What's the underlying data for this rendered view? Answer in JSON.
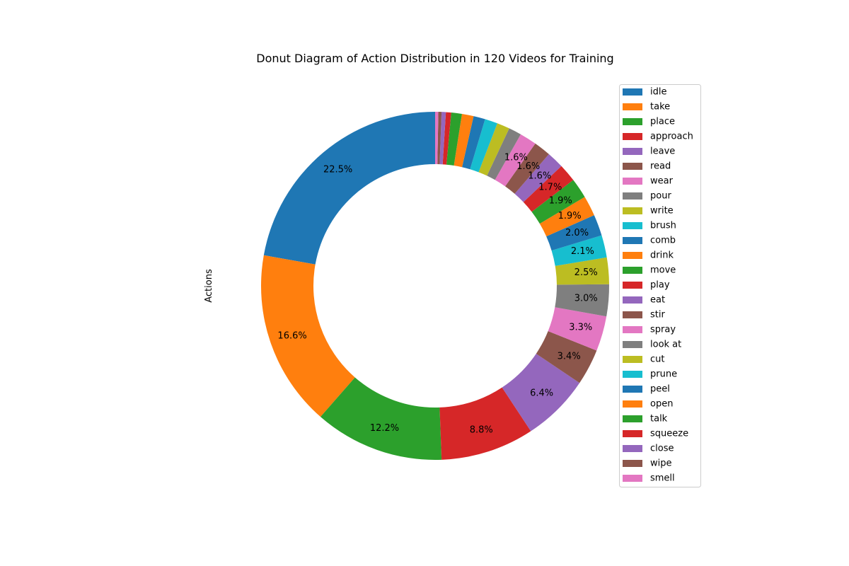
{
  "chart_data": {
    "type": "pie",
    "donut": true,
    "title": "Donut Diagram of Action Distribution in 120 Videos for Training",
    "ylabel": "Actions",
    "legend_position": "right",
    "start_angle_deg": 90,
    "direction": "counterclockwise",
    "colors": [
      "#1f77b4",
      "#ff7f0e",
      "#2ca02c",
      "#d62728",
      "#9467bd",
      "#8c564b",
      "#e377c2",
      "#7f7f7f",
      "#bcbd22",
      "#17becf"
    ],
    "slices": [
      {
        "label": "idle",
        "value": 22.5,
        "pct_label": "22.5%"
      },
      {
        "label": "take",
        "value": 16.6,
        "pct_label": "16.6%"
      },
      {
        "label": "place",
        "value": 12.2,
        "pct_label": "12.2%"
      },
      {
        "label": "approach",
        "value": 8.8,
        "pct_label": "8.8%"
      },
      {
        "label": "leave",
        "value": 6.4,
        "pct_label": "6.4%"
      },
      {
        "label": "read",
        "value": 3.4,
        "pct_label": "3.4%"
      },
      {
        "label": "wear",
        "value": 3.3,
        "pct_label": "3.3%"
      },
      {
        "label": "pour",
        "value": 3.0,
        "pct_label": "3.0%"
      },
      {
        "label": "write",
        "value": 2.5,
        "pct_label": "2.5%"
      },
      {
        "label": "brush",
        "value": 2.1,
        "pct_label": "2.1%"
      },
      {
        "label": "comb",
        "value": 2.0,
        "pct_label": "2.0%"
      },
      {
        "label": "drink",
        "value": 1.9,
        "pct_label": "1.9%"
      },
      {
        "label": "move",
        "value": 1.9,
        "pct_label": "1.9%"
      },
      {
        "label": "play",
        "value": 1.7,
        "pct_label": "1.7%"
      },
      {
        "label": "eat",
        "value": 1.6,
        "pct_label": "1.6%"
      },
      {
        "label": "stir",
        "value": 1.6,
        "pct_label": "1.6%"
      },
      {
        "label": "spray",
        "value": 1.6,
        "pct_label": "1.6%"
      },
      {
        "label": "look at",
        "value": 1.2,
        "pct_label": ""
      },
      {
        "label": "cut",
        "value": 1.2,
        "pct_label": ""
      },
      {
        "label": "prune",
        "value": 1.2,
        "pct_label": ""
      },
      {
        "label": "peel",
        "value": 1.1,
        "pct_label": ""
      },
      {
        "label": "open",
        "value": 1.1,
        "pct_label": ""
      },
      {
        "label": "talk",
        "value": 1.0,
        "pct_label": ""
      },
      {
        "label": "squeeze",
        "value": 0.5,
        "pct_label": ""
      },
      {
        "label": "close",
        "value": 0.4,
        "pct_label": ""
      },
      {
        "label": "wipe",
        "value": 0.3,
        "pct_label": ""
      },
      {
        "label": "smell",
        "value": 0.3,
        "pct_label": ""
      }
    ]
  }
}
